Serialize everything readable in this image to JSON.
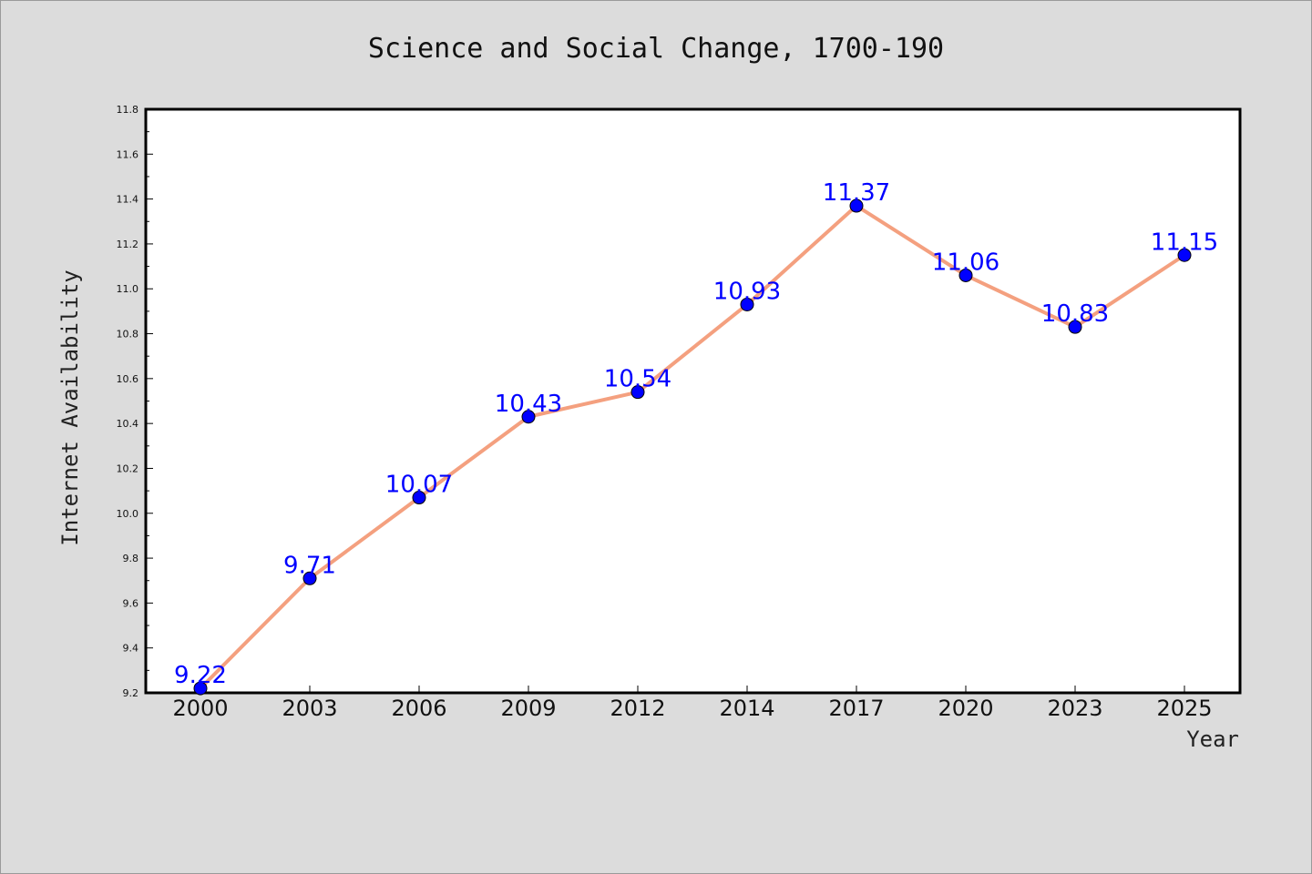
{
  "chart_data": {
    "type": "line",
    "title": "Science and Social Change, 1700-190",
    "xlabel": "Year",
    "ylabel": "Internet Availability",
    "categories": [
      "2000",
      "2003",
      "2006",
      "2009",
      "2012",
      "2014",
      "2017",
      "2020",
      "2023",
      "2025"
    ],
    "series": [
      {
        "values": [
          9.22,
          9.71,
          10.07,
          10.43,
          10.54,
          10.93,
          11.37,
          11.06,
          10.83,
          11.15
        ]
      }
    ],
    "data_labels": [
      "9.22",
      "9.71",
      "10.07",
      "10.43",
      "10.54",
      "10.93",
      "11.37",
      "11.06",
      "10.83",
      "11.15"
    ],
    "yticks": [
      "9.2",
      "9.4",
      "9.6",
      "9.8",
      "10.0",
      "10.2",
      "10.4",
      "10.6",
      "10.8",
      "11.0",
      "11.2",
      "11.4",
      "11.6",
      "11.8"
    ],
    "ylim": [
      9.2,
      11.8
    ],
    "grid": false,
    "colors": {
      "line": "#f4a07f",
      "marker": "#0000ff",
      "data_label": "#0000ff",
      "background": "#dcdcdc",
      "plot_background": "#ffffff"
    }
  }
}
